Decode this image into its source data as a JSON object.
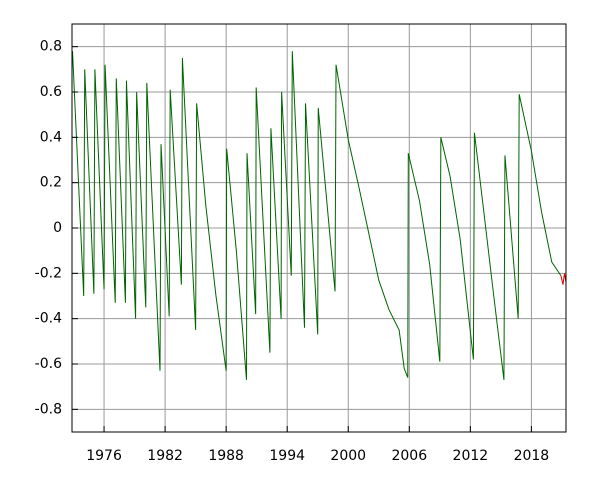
{
  "chart_data": {
    "type": "line",
    "grid": true,
    "xlim": [
      1972.85,
      2021.4
    ],
    "ylim": [
      -0.9,
      0.9
    ],
    "xticks": [
      1976,
      1982,
      1988,
      1994,
      2000,
      2006,
      2012,
      2018
    ],
    "yticks": [
      -0.8,
      -0.6,
      -0.4,
      -0.2,
      0,
      0.2,
      0.4,
      0.6,
      0.8
    ],
    "series": [
      {
        "color": "#006400",
        "x": [
          1972.9,
          1974.0,
          1974.1,
          1975.0,
          1975.1,
          1976.0,
          1976.1,
          1977.1,
          1977.2,
          1978.1,
          1978.2,
          1979.1,
          1979.2,
          1980.1,
          1980.2,
          1981.5,
          1981.6,
          1982.4,
          1982.5,
          1983.6,
          1983.7,
          1985.0,
          1985.1,
          1986.0,
          1987.0,
          1988.0,
          1988.05,
          1989.0,
          1990.0,
          1990.05,
          1990.9,
          1990.95,
          1992.3,
          1992.4,
          1993.4,
          1993.45,
          1994.4,
          1994.5,
          1995.7,
          1995.8,
          1997.0,
          1997.05,
          1998.7,
          1998.8,
          2000.0,
          2001.0,
          2002.0,
          2003.0,
          2004.0,
          2005.0,
          2005.5,
          2005.85,
          2005.9,
          2007.0,
          2008.0,
          2009.0,
          2009.1,
          2010.0,
          2011.0,
          2012.3,
          2012.4,
          2013.3,
          2014.3,
          2015.3,
          2015.4,
          2016.7,
          2016.8,
          2018.0,
          2019.0,
          2020.0,
          2020.9
        ],
        "values": [
          0.78,
          -0.3,
          0.7,
          -0.29,
          0.7,
          -0.27,
          0.72,
          -0.33,
          0.66,
          -0.33,
          0.65,
          -0.4,
          0.6,
          -0.35,
          0.64,
          -0.63,
          0.37,
          -0.39,
          0.61,
          -0.25,
          0.75,
          -0.45,
          0.55,
          0.1,
          -0.3,
          -0.63,
          0.35,
          -0.1,
          -0.67,
          0.33,
          -0.38,
          0.62,
          -0.55,
          0.44,
          -0.4,
          0.6,
          -0.21,
          0.78,
          -0.44,
          0.55,
          -0.47,
          0.53,
          -0.28,
          0.72,
          0.39,
          0.19,
          -0.02,
          -0.23,
          -0.36,
          -0.45,
          -0.62,
          -0.66,
          0.33,
          0.12,
          -0.16,
          -0.59,
          0.4,
          0.23,
          -0.05,
          -0.58,
          0.42,
          0.08,
          -0.3,
          -0.67,
          0.32,
          -0.4,
          0.59,
          0.34,
          0.07,
          -0.15,
          -0.21
        ]
      },
      {
        "color": "#e00000",
        "x": [
          2020.9,
          2021.1,
          2021.25,
          2021.4
        ],
        "values": [
          -0.21,
          -0.25,
          -0.2,
          -0.24
        ]
      }
    ]
  }
}
